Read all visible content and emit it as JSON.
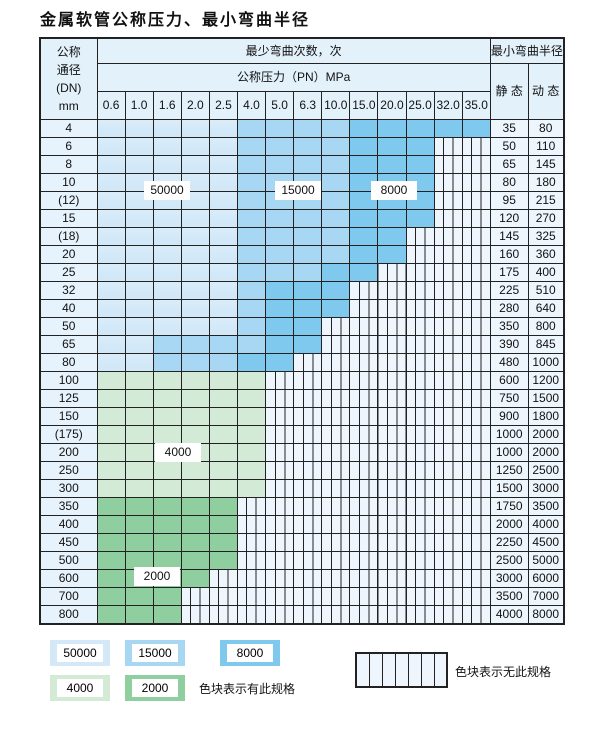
{
  "title": "金属软管公称压力、最小弯曲半径",
  "header": {
    "dn_label": [
      "公称",
      "通径",
      "(DN)",
      "mm"
    ],
    "cycles_label": "最少弯曲次数，次",
    "pressure_label": "公称压力（PN）MPa",
    "radius_label": "最小弯曲半径",
    "static_label": "静 态",
    "dynamic_label": "动 态",
    "pressures": [
      "0.6",
      "1.0",
      "1.6",
      "2.0",
      "2.5",
      "4.0",
      "5.0",
      "6.3",
      "10.0",
      "15.0",
      "20.0",
      "25.0",
      "32.0",
      "35.0"
    ]
  },
  "rows": [
    {
      "dn": "4",
      "static": "35",
      "dynamic": "80",
      "fill": "LLLLLMMMMDDDDD"
    },
    {
      "dn": "6",
      "static": "50",
      "dynamic": "110",
      "fill": "LLLLLMMMMDDD"
    },
    {
      "dn": "8",
      "static": "65",
      "dynamic": "145",
      "fill": "LLLLLMMMMDDD"
    },
    {
      "dn": "10",
      "static": "80",
      "dynamic": "180",
      "fill": "LLLLLMMMMDDD"
    },
    {
      "dn": "(12)",
      "static": "95",
      "dynamic": "215",
      "fill": "LLLLLMMMMDDD"
    },
    {
      "dn": "15",
      "static": "120",
      "dynamic": "270",
      "fill": "LLLLLMMMMDDD"
    },
    {
      "dn": "(18)",
      "static": "145",
      "dynamic": "325",
      "fill": "LLLLLMMMMDD"
    },
    {
      "dn": "20",
      "static": "160",
      "dynamic": "360",
      "fill": "LLLLLMMMMDD"
    },
    {
      "dn": "25",
      "static": "175",
      "dynamic": "400",
      "fill": "LLLLLMMMDD"
    },
    {
      "dn": "32",
      "static": "225",
      "dynamic": "510",
      "fill": "LLLLLMDDD"
    },
    {
      "dn": "40",
      "static": "280",
      "dynamic": "640",
      "fill": "LLLLLMDDD"
    },
    {
      "dn": "50",
      "static": "350",
      "dynamic": "800",
      "fill": "LLLLLMDD"
    },
    {
      "dn": "65",
      "static": "390",
      "dynamic": "845",
      "fill": "LLMMMMDD"
    },
    {
      "dn": "80",
      "static": "480",
      "dynamic": "1000",
      "fill": "LLMMMDD"
    },
    {
      "dn": "100",
      "static": "600",
      "dynamic": "1200",
      "fill": "gggggg"
    },
    {
      "dn": "125",
      "static": "750",
      "dynamic": "1500",
      "fill": "gggggg"
    },
    {
      "dn": "150",
      "static": "900",
      "dynamic": "1800",
      "fill": "gggggg"
    },
    {
      "dn": "(175)",
      "static": "1000",
      "dynamic": "2000",
      "fill": "gggggg"
    },
    {
      "dn": "200",
      "static": "1000",
      "dynamic": "2000",
      "fill": "gggggg"
    },
    {
      "dn": "250",
      "static": "1250",
      "dynamic": "2500",
      "fill": "gggggg"
    },
    {
      "dn": "300",
      "static": "1500",
      "dynamic": "3000",
      "fill": "gggggg"
    },
    {
      "dn": "350",
      "static": "1750",
      "dynamic": "3500",
      "fill": "GGGGG"
    },
    {
      "dn": "400",
      "static": "2000",
      "dynamic": "4000",
      "fill": "GGGGG"
    },
    {
      "dn": "450",
      "static": "2250",
      "dynamic": "4500",
      "fill": "GGGGG"
    },
    {
      "dn": "500",
      "static": "2500",
      "dynamic": "5000",
      "fill": "GGGGG"
    },
    {
      "dn": "600",
      "static": "3000",
      "dynamic": "6000",
      "fill": "GGGG"
    },
    {
      "dn": "700",
      "static": "3500",
      "dynamic": "7000",
      "fill": "GGG"
    },
    {
      "dn": "800",
      "static": "4000",
      "dynamic": "8000",
      "fill": "GGG"
    }
  ],
  "region_labels": {
    "light_blue": "50000",
    "medium_blue": "15000",
    "dark_blue": "8000",
    "light_green": "4000",
    "green": "2000"
  },
  "legend": {
    "items": [
      "50000",
      "15000",
      "8000",
      "4000",
      "2000"
    ],
    "has_spec": "色块表示有此规格",
    "no_spec": "色块表示无此规格"
  },
  "colors": {
    "light_blue": "#d4e9f8",
    "medium_blue": "#a8d7f3",
    "dark_blue": "#7fc8ee",
    "light_green": "#d2ead6",
    "green": "#8fcf9f",
    "empty": "#eef5fc"
  }
}
